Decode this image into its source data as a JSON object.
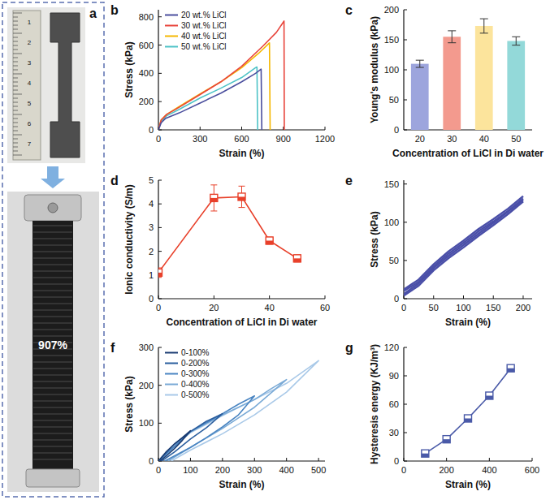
{
  "panel_a": {
    "panel_label": "a",
    "ruler_labels": [
      "1",
      "2",
      "3",
      "4",
      "5",
      "6",
      "7"
    ],
    "annotation": "907%"
  },
  "chart_data": [
    {
      "panel_label": "b",
      "type": "line",
      "x_label": "Strain (%)",
      "y_label": "Stress (kPa)",
      "xlim": [
        0,
        1200
      ],
      "xticks": [
        0,
        300,
        600,
        900,
        1200
      ],
      "ylim": [
        0,
        850
      ],
      "yticks": [
        0,
        200,
        400,
        600,
        800
      ],
      "legend": "upper left",
      "series": [
        {
          "name": "20 wt.% LiCl",
          "color": "#4b4f9e",
          "x": [
            0,
            20,
            50,
            150,
            300,
            450,
            600,
            700,
            740,
            745
          ],
          "values": [
            0,
            50,
            80,
            120,
            190,
            260,
            340,
            400,
            430,
            0
          ]
        },
        {
          "name": "30 wt.% LiCl",
          "color": "#e8453c",
          "x": [
            0,
            20,
            60,
            150,
            300,
            450,
            600,
            750,
            850,
            905,
            907
          ],
          "values": [
            0,
            70,
            110,
            160,
            250,
            340,
            450,
            590,
            690,
            770,
            0
          ]
        },
        {
          "name": "40 wt.% LiCl",
          "color": "#f5b700",
          "x": [
            0,
            20,
            60,
            150,
            300,
            450,
            600,
            720,
            800,
            805
          ],
          "values": [
            0,
            70,
            110,
            165,
            255,
            340,
            440,
            540,
            615,
            0
          ]
        },
        {
          "name": "50 wt.% LiCl",
          "color": "#4ec3c7",
          "x": [
            0,
            20,
            60,
            150,
            300,
            450,
            600,
            700,
            710,
            715
          ],
          "values": [
            0,
            60,
            100,
            145,
            225,
            295,
            370,
            440,
            445,
            0
          ]
        }
      ]
    },
    {
      "panel_label": "c",
      "type": "bar",
      "x_label": "Concentration of LiCl in Di water",
      "y_label": "Young's modulus (kPa)",
      "categories": [
        "20",
        "30",
        "40",
        "50"
      ],
      "values": [
        110,
        155,
        173,
        148
      ],
      "errors": [
        6,
        10,
        12,
        7
      ],
      "colors": [
        "#9da5dd",
        "#f39a8e",
        "#fce49c",
        "#93d9d9"
      ],
      "ylim": [
        0,
        200
      ],
      "yticks": [
        0,
        50,
        100,
        150,
        200
      ]
    },
    {
      "panel_label": "d",
      "type": "line",
      "x_label": "Concentration of LiCl in Di water",
      "y_label": "Ionic conductivity (S/m)",
      "x": [
        0,
        20,
        30,
        40,
        50
      ],
      "values": [
        1.1,
        4.25,
        4.3,
        2.45,
        1.7
      ],
      "errors": [
        0.2,
        0.55,
        0.45,
        0.15,
        0.15
      ],
      "color": "#e8402a",
      "marker": "square",
      "xlim": [
        0,
        60
      ],
      "xticks": [
        0,
        20,
        40,
        60
      ],
      "ylim": [
        0,
        5
      ],
      "yticks": [
        0,
        1,
        2,
        3,
        4,
        5
      ]
    },
    {
      "panel_label": "e",
      "type": "line",
      "x_label": "Strain (%)",
      "y_label": "Stress (kPa)",
      "xlim": [
        0,
        215
      ],
      "xticks": [
        0,
        50,
        100,
        150,
        200
      ],
      "ylim": [
        0,
        155
      ],
      "yticks": [
        0,
        50,
        100,
        150
      ],
      "series": [
        {
          "color": "#4a4fa8",
          "x": [
            0,
            25,
            50,
            75,
            100,
            125,
            150,
            175,
            200
          ],
          "values": [
            12,
            25,
            45,
            62,
            76,
            91,
            104,
            118,
            134
          ]
        },
        {
          "color": "#4a4fa8",
          "x": [
            0,
            25,
            50,
            75,
            100,
            125,
            150,
            175,
            200
          ],
          "values": [
            10,
            22,
            42,
            59,
            73,
            88,
            101,
            115,
            131
          ]
        },
        {
          "color": "#4a4fa8",
          "x": [
            200,
            175,
            150,
            125,
            100,
            75,
            50,
            25,
            0
          ],
          "values": [
            129,
            114,
            99,
            85,
            70,
            56,
            40,
            20,
            6
          ]
        },
        {
          "color": "#4a4fa8",
          "x": [
            200,
            175,
            150,
            125,
            100,
            75,
            50,
            25,
            0
          ],
          "values": [
            127,
            111,
            96,
            82,
            67,
            53,
            37,
            17,
            4
          ]
        }
      ]
    },
    {
      "panel_label": "f",
      "type": "line",
      "x_label": "Strain (%)",
      "y_label": "Stress (kPa)",
      "xlim": [
        0,
        520
      ],
      "xticks": [
        0,
        100,
        200,
        300,
        400,
        500
      ],
      "ylim": [
        0,
        300
      ],
      "yticks": [
        0,
        100,
        200,
        300
      ],
      "legend": "upper left",
      "series": [
        {
          "name": "0-100%",
          "color": "#1b3d73",
          "x": [
            0,
            25,
            50,
            75,
            100,
            75,
            50,
            25,
            5
          ],
          "values": [
            0,
            25,
            45,
            62,
            80,
            55,
            33,
            14,
            0
          ]
        },
        {
          "name": "0-200%",
          "color": "#2b5e9e",
          "x": [
            0,
            50,
            100,
            150,
            200,
            150,
            100,
            50,
            10
          ],
          "values": [
            0,
            45,
            78,
            105,
            125,
            88,
            58,
            24,
            0
          ]
        },
        {
          "name": "0-300%",
          "color": "#4a85c2",
          "x": [
            0,
            100,
            200,
            250,
            300,
            250,
            200,
            150,
            100,
            20
          ],
          "values": [
            0,
            78,
            125,
            150,
            172,
            122,
            90,
            62,
            36,
            0
          ]
        },
        {
          "name": "0-400%",
          "color": "#7aaad6",
          "x": [
            0,
            100,
            200,
            300,
            350,
            400,
            300,
            200,
            100,
            30
          ],
          "values": [
            0,
            77,
            122,
            162,
            190,
            215,
            142,
            86,
            36,
            0
          ]
        },
        {
          "name": "0-500%",
          "color": "#a9c9e8",
          "x": [
            0,
            100,
            200,
            300,
            400,
            450,
            500,
            400,
            300,
            200,
            100,
            40
          ],
          "values": [
            0,
            75,
            120,
            163,
            205,
            235,
            265,
            182,
            122,
            72,
            29,
            0
          ]
        }
      ]
    },
    {
      "panel_label": "g",
      "type": "line",
      "x_label": "Strain (%)",
      "y_label": "Hysteresis energy (KJ/m³)",
      "x": [
        100,
        200,
        300,
        400,
        500
      ],
      "values": [
        8,
        23,
        45,
        69,
        98
      ],
      "color": "#4a5aa8",
      "marker": "square",
      "xlim": [
        0,
        600
      ],
      "xticks": [
        0,
        200,
        400,
        600
      ],
      "ylim": [
        0,
        120
      ],
      "yticks": [
        0,
        30,
        60,
        90,
        120
      ]
    }
  ]
}
